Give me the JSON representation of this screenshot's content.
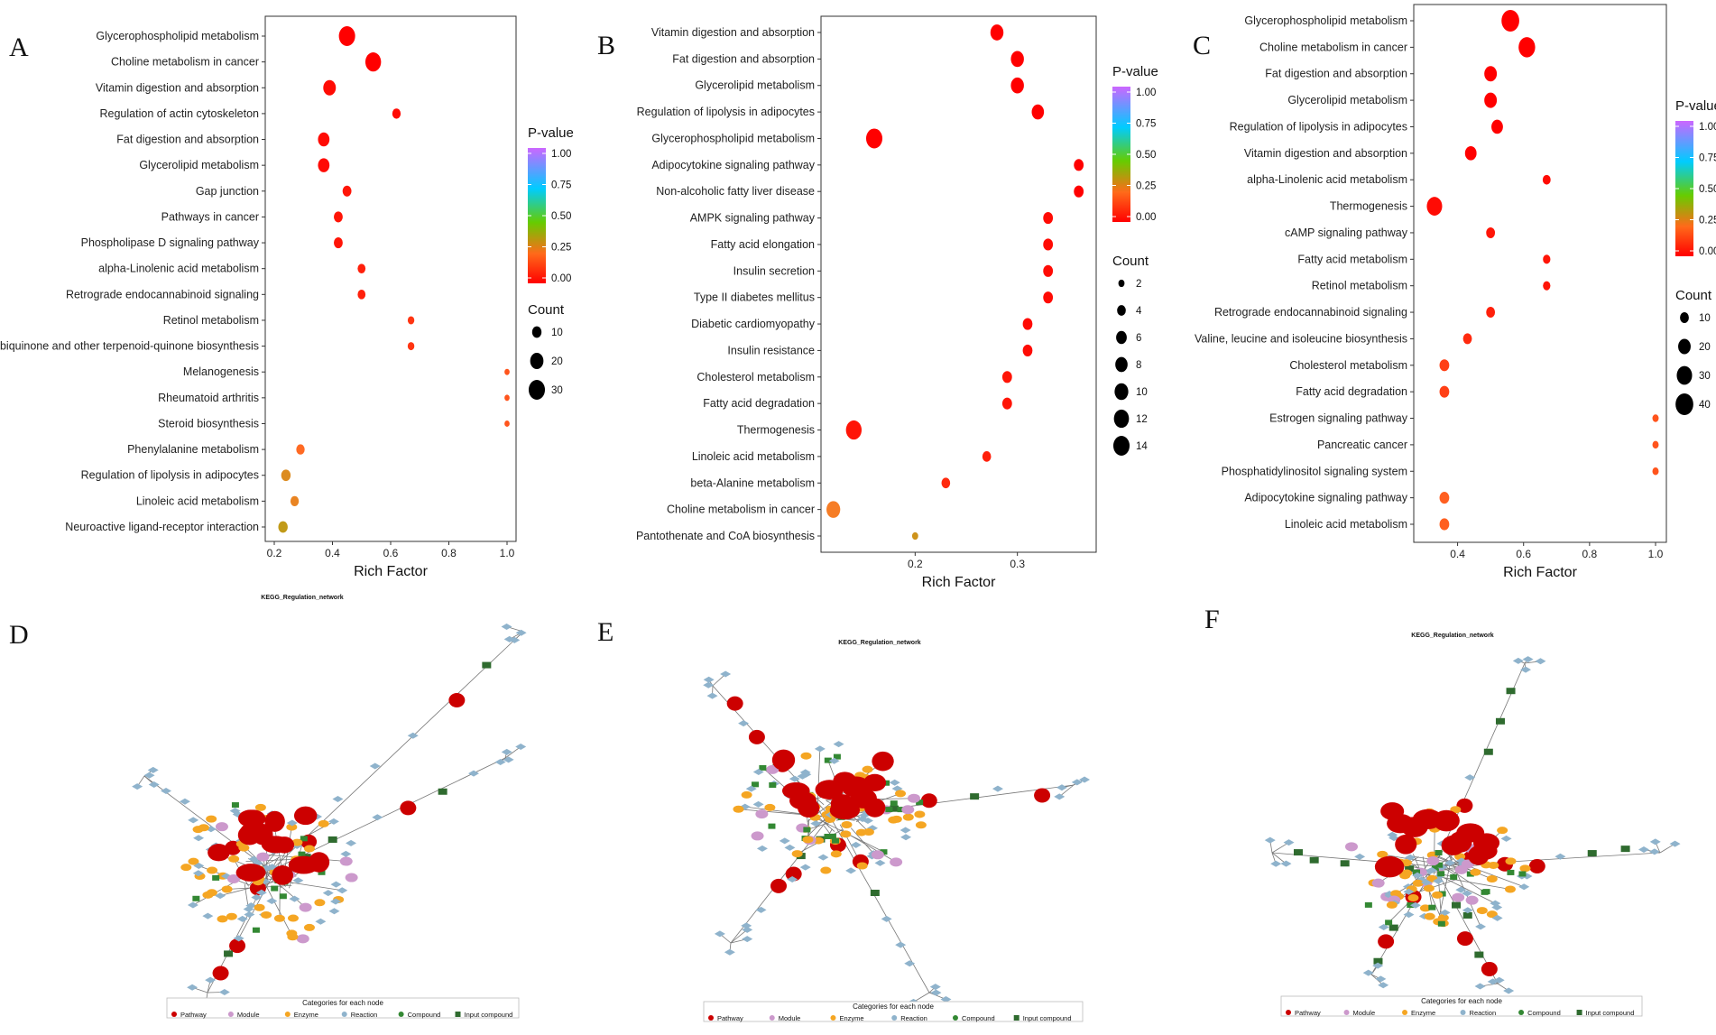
{
  "colors": {
    "pvalue_gradient": [
      "#ff0000",
      "#ff7f00",
      "#66cc00",
      "#00ccff",
      "#9966ff",
      "#cc66ff"
    ],
    "pathway": "#cc0000",
    "module": "#cc99cc",
    "enzyme": "#f5a623",
    "reaction": "#8fb3cc",
    "compound": "#338833",
    "input_compound": "#2f6b2f"
  },
  "chart_data": [
    {
      "panel": "A",
      "type": "scatter",
      "xlabel": "Rich Factor",
      "xlim": [
        0.2,
        1.0
      ],
      "xticks": [
        0.2,
        0.4,
        0.6,
        0.8,
        1.0
      ],
      "xtick_labels": [
        "0.2",
        "0.4",
        "0.6",
        "0.8",
        "1.0"
      ],
      "legend_color_title": "P-value",
      "legend_color_ticks": [
        "1.00",
        "0.75",
        "0.50",
        "0.25",
        "0.00"
      ],
      "legend_size_title": "Count",
      "legend_size_values": [
        10,
        20,
        30
      ],
      "legend_size_labels": [
        "10",
        "20",
        "30"
      ],
      "terms": [
        {
          "term": "Glycerophospholipid metabolism",
          "rich_factor": 0.45,
          "count": 30,
          "p_value": 0.0
        },
        {
          "term": "Choline metabolism in cancer",
          "rich_factor": 0.54,
          "count": 28,
          "p_value": 0.0
        },
        {
          "term": "Vitamin digestion and absorption",
          "rich_factor": 0.39,
          "count": 18,
          "p_value": 0.01
        },
        {
          "term": "Regulation of actin cytoskeleton",
          "rich_factor": 0.62,
          "count": 8,
          "p_value": 0.01
        },
        {
          "term": "Fat digestion and absorption",
          "rich_factor": 0.37,
          "count": 15,
          "p_value": 0.01
        },
        {
          "term": "Glycerolipid metabolism",
          "rich_factor": 0.37,
          "count": 15,
          "p_value": 0.01
        },
        {
          "term": "Gap junction",
          "rich_factor": 0.45,
          "count": 9,
          "p_value": 0.02
        },
        {
          "term": "Pathways in cancer",
          "rich_factor": 0.42,
          "count": 9,
          "p_value": 0.02
        },
        {
          "term": "Phospholipase D signaling pathway",
          "rich_factor": 0.42,
          "count": 9,
          "p_value": 0.02
        },
        {
          "term": "alpha-Linolenic acid metabolism",
          "rich_factor": 0.5,
          "count": 7,
          "p_value": 0.03
        },
        {
          "term": "Retrograde endocannabinoid signaling",
          "rich_factor": 0.5,
          "count": 7,
          "p_value": 0.03
        },
        {
          "term": "Retinol metabolism",
          "rich_factor": 0.67,
          "count": 5,
          "p_value": 0.05
        },
        {
          "term": "Ubiquinone and other terpenoid-quinone biosynthesis",
          "rich_factor": 0.67,
          "count": 5,
          "p_value": 0.05
        },
        {
          "term": "Melanogenesis",
          "rich_factor": 1.0,
          "count": 3,
          "p_value": 0.08
        },
        {
          "term": "Rheumatoid arthritis",
          "rich_factor": 1.0,
          "count": 3,
          "p_value": 0.08
        },
        {
          "term": "Steroid biosynthesis",
          "rich_factor": 1.0,
          "count": 3,
          "p_value": 0.08
        },
        {
          "term": "Phenylalanine metabolism",
          "rich_factor": 0.29,
          "count": 8,
          "p_value": 0.1
        },
        {
          "term": "Regulation of lipolysis in adipocytes",
          "rich_factor": 0.24,
          "count": 10,
          "p_value": 0.14
        },
        {
          "term": "Linoleic acid metabolism",
          "rich_factor": 0.27,
          "count": 8,
          "p_value": 0.13
        },
        {
          "term": "Neuroactive ligand-receptor interaction",
          "rich_factor": 0.23,
          "count": 10,
          "p_value": 0.16
        }
      ]
    },
    {
      "panel": "B",
      "type": "scatter",
      "xlabel": "Rich Factor",
      "xlim": [
        0.115,
        0.37
      ],
      "xticks": [
        0.2,
        0.3
      ],
      "xtick_labels": [
        "0.2",
        "0.3"
      ],
      "legend_color_title": "P-value",
      "legend_color_ticks": [
        "1.00",
        "0.75",
        "0.50",
        "0.25",
        "0.00"
      ],
      "legend_size_title": "Count",
      "legend_size_values": [
        2,
        4,
        6,
        8,
        10,
        12,
        14
      ],
      "legend_size_labels": [
        "2",
        "4",
        "6",
        "8",
        "10",
        "12",
        "14"
      ],
      "terms": [
        {
          "term": "Vitamin digestion and absorption",
          "rich_factor": 0.28,
          "count": 9,
          "p_value": 0.0
        },
        {
          "term": "Fat digestion and absorption",
          "rich_factor": 0.3,
          "count": 9,
          "p_value": 0.0
        },
        {
          "term": "Glycerolipid metabolism",
          "rich_factor": 0.3,
          "count": 9,
          "p_value": 0.0
        },
        {
          "term": "Regulation of lipolysis in adipocytes",
          "rich_factor": 0.32,
          "count": 8,
          "p_value": 0.0
        },
        {
          "term": "Glycerophospholipid metabolism",
          "rich_factor": 0.16,
          "count": 14,
          "p_value": 0.0
        },
        {
          "term": "Adipocytokine signaling pathway",
          "rich_factor": 0.36,
          "count": 5,
          "p_value": 0.0
        },
        {
          "term": "Non-alcoholic fatty liver disease",
          "rich_factor": 0.36,
          "count": 5,
          "p_value": 0.0
        },
        {
          "term": "AMPK signaling pathway",
          "rich_factor": 0.33,
          "count": 5,
          "p_value": 0.01
        },
        {
          "term": "Fatty acid elongation",
          "rich_factor": 0.33,
          "count": 5,
          "p_value": 0.01
        },
        {
          "term": "Insulin secretion",
          "rich_factor": 0.33,
          "count": 5,
          "p_value": 0.01
        },
        {
          "term": "Type II diabetes mellitus",
          "rich_factor": 0.33,
          "count": 5,
          "p_value": 0.01
        },
        {
          "term": "Diabetic cardiomyopathy",
          "rich_factor": 0.31,
          "count": 5,
          "p_value": 0.01
        },
        {
          "term": "Insulin resistance",
          "rich_factor": 0.31,
          "count": 5,
          "p_value": 0.01
        },
        {
          "term": "Cholesterol metabolism",
          "rich_factor": 0.29,
          "count": 5,
          "p_value": 0.02
        },
        {
          "term": "Fatty acid degradation",
          "rich_factor": 0.29,
          "count": 5,
          "p_value": 0.02
        },
        {
          "term": "Thermogenesis",
          "rich_factor": 0.14,
          "count": 13,
          "p_value": 0.02
        },
        {
          "term": "Linoleic acid metabolism",
          "rich_factor": 0.27,
          "count": 4,
          "p_value": 0.03
        },
        {
          "term": "beta-Alanine metabolism",
          "rich_factor": 0.23,
          "count": 4,
          "p_value": 0.04
        },
        {
          "term": "Choline metabolism in cancer",
          "rich_factor": 0.12,
          "count": 10,
          "p_value": 0.12
        },
        {
          "term": "Pantothenate and CoA biosynthesis",
          "rich_factor": 0.2,
          "count": 2,
          "p_value": 0.15
        }
      ]
    },
    {
      "panel": "C",
      "type": "scatter",
      "xlabel": "Rich Factor",
      "xlim": [
        0.3,
        1.0
      ],
      "xticks": [
        0.4,
        0.6,
        0.8,
        1.0
      ],
      "xtick_labels": [
        "0.4",
        "0.6",
        "0.8",
        "1.0"
      ],
      "legend_color_title": "P-value",
      "legend_color_ticks": [
        "1.00",
        "0.75",
        "0.50",
        "0.25",
        "0.00"
      ],
      "legend_size_title": "Count",
      "legend_size_values": [
        10,
        20,
        30,
        40
      ],
      "legend_size_labels": [
        "10",
        "20",
        "30",
        "40"
      ],
      "terms": [
        {
          "term": "Glycerophospholipid metabolism",
          "rich_factor": 0.56,
          "count": 40,
          "p_value": 0.0
        },
        {
          "term": "Choline metabolism in cancer",
          "rich_factor": 0.61,
          "count": 35,
          "p_value": 0.0
        },
        {
          "term": "Fat digestion and absorption",
          "rich_factor": 0.5,
          "count": 20,
          "p_value": 0.0
        },
        {
          "term": "Glycerolipid metabolism",
          "rich_factor": 0.5,
          "count": 20,
          "p_value": 0.0
        },
        {
          "term": "Regulation of lipolysis in adipocytes",
          "rich_factor": 0.52,
          "count": 17,
          "p_value": 0.0
        },
        {
          "term": "Vitamin digestion and absorption",
          "rich_factor": 0.44,
          "count": 17,
          "p_value": 0.0
        },
        {
          "term": "alpha-Linolenic acid metabolism",
          "rich_factor": 0.67,
          "count": 8,
          "p_value": 0.01
        },
        {
          "term": "Thermogenesis",
          "rich_factor": 0.33,
          "count": 30,
          "p_value": 0.01
        },
        {
          "term": "cAMP signaling pathway",
          "rich_factor": 0.5,
          "count": 10,
          "p_value": 0.02
        },
        {
          "term": "Fatty acid metabolism",
          "rich_factor": 0.67,
          "count": 7,
          "p_value": 0.02
        },
        {
          "term": "Retinol metabolism",
          "rich_factor": 0.67,
          "count": 7,
          "p_value": 0.02
        },
        {
          "term": "Retrograde endocannabinoid signaling",
          "rich_factor": 0.5,
          "count": 10,
          "p_value": 0.03
        },
        {
          "term": "Valine, leucine and isoleucine biosynthesis",
          "rich_factor": 0.43,
          "count": 10,
          "p_value": 0.04
        },
        {
          "term": "Cholesterol metabolism",
          "rich_factor": 0.36,
          "count": 12,
          "p_value": 0.06
        },
        {
          "term": "Fatty acid degradation",
          "rich_factor": 0.36,
          "count": 12,
          "p_value": 0.06
        },
        {
          "term": "Estrogen signaling pathway",
          "rich_factor": 1.0,
          "count": 5,
          "p_value": 0.08
        },
        {
          "term": "Pancreatic cancer",
          "rich_factor": 1.0,
          "count": 5,
          "p_value": 0.08
        },
        {
          "term": "Phosphatidylinositol signaling system",
          "rich_factor": 1.0,
          "count": 5,
          "p_value": 0.08
        },
        {
          "term": "Adipocytokine signaling pathway",
          "rich_factor": 0.36,
          "count": 12,
          "p_value": 0.09
        },
        {
          "term": "Linoleic acid metabolism",
          "rich_factor": 0.36,
          "count": 12,
          "p_value": 0.09
        }
      ]
    }
  ],
  "panels": {
    "A": "A",
    "B": "B",
    "C": "C",
    "D": "D",
    "E": "E",
    "F": "F"
  },
  "networks": {
    "title": "KEGG_Regulation_network",
    "legend_title": "Categories for each node",
    "legend_items": [
      "Pathway",
      "Module",
      "Enzyme",
      "Reaction",
      "Compound",
      "Input compound"
    ]
  }
}
